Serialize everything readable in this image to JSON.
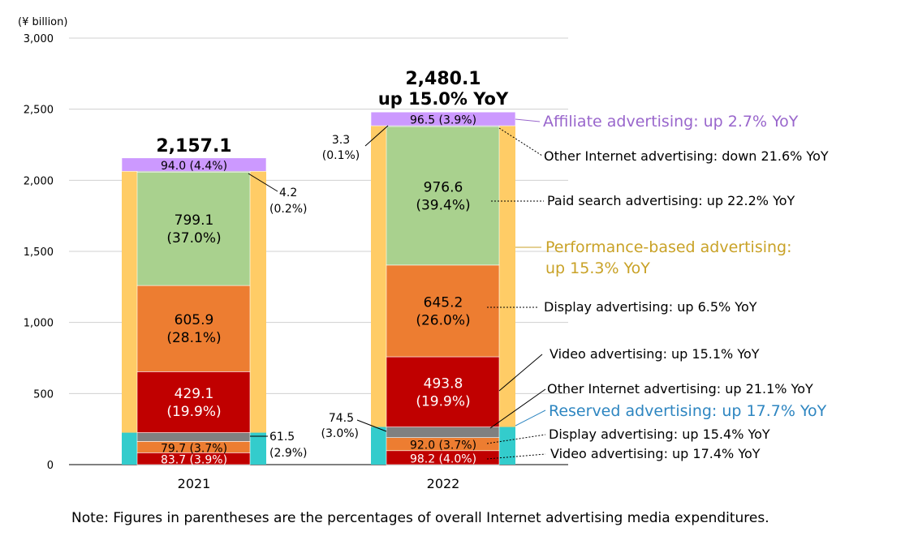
{
  "chart_data": {
    "type": "bar",
    "stacked": true,
    "unit_label": "(¥ billion)",
    "categories": [
      "2021",
      "2022"
    ],
    "ylim": [
      0,
      3000
    ],
    "yticks": [
      "0",
      "500",
      "1,000",
      "1,500",
      "2,000",
      "2,500",
      "3,000"
    ],
    "grid": true,
    "totals": [
      {
        "value": "2,157.1"
      },
      {
        "value": "2,480.1",
        "change": "up 15.0% YoY"
      }
    ],
    "segment_colors": {
      "video_reserved": "#c00000",
      "display_reserved": "#ed7d31",
      "other_reserved": "#808080",
      "video_perf": "#c00000",
      "display_perf": "#ed7d31",
      "paid_search": "#a9d18e",
      "other_perf": "#808080",
      "affiliate": "#cc99ff",
      "reserved_group": "#33cccc",
      "performance_group": "#ffcc66"
    },
    "groups": [
      {
        "key": "reserved_group",
        "values": [
          225,
          265
        ]
      },
      {
        "key": "performance_group",
        "values": [
          1838.1,
          2118.6
        ]
      }
    ],
    "series": [
      {
        "key": "video_reserved",
        "values": [
          83.7,
          98.2
        ],
        "labels": [
          "83.7 (3.9%)",
          "98.2 (4.0%)"
        ]
      },
      {
        "key": "display_reserved",
        "values": [
          79.7,
          92.0
        ],
        "labels": [
          "79.7 (3.7%)",
          "92.0 (3.7%)"
        ]
      },
      {
        "key": "other_reserved",
        "values": [
          61.5,
          74.5
        ],
        "labels": [
          "",
          ""
        ]
      },
      {
        "key": "video_perf",
        "values": [
          429.1,
          493.8
        ],
        "labels": [
          "429.1\n(19.9%)",
          "493.8\n(19.9%)"
        ]
      },
      {
        "key": "display_perf",
        "values": [
          605.9,
          645.2
        ],
        "labels": [
          "605.9\n(28.1%)",
          "645.2\n(26.0%)"
        ]
      },
      {
        "key": "paid_search",
        "values": [
          799.1,
          976.6
        ],
        "labels": [
          "799.1\n(37.0%)",
          "976.6\n(39.4%)"
        ]
      },
      {
        "key": "other_perf",
        "values": [
          4.2,
          3.3
        ],
        "labels": [
          "",
          ""
        ]
      },
      {
        "key": "affiliate",
        "values": [
          94.0,
          96.5
        ],
        "labels": [
          "94.0 (4.4%)",
          "96.5 (3.9%)"
        ]
      }
    ],
    "callouts": {
      "other_reserved_2021": {
        "value": "61.5",
        "pct": "(2.9%)"
      },
      "other_perf_2021": {
        "value": "4.2",
        "pct": "(0.2%)"
      },
      "other_reserved_2022": {
        "value": "74.5",
        "pct": "(3.0%)"
      },
      "other_perf_2022": {
        "value": "3.3",
        "pct": "(0.1%)"
      }
    },
    "annotations": {
      "affiliate": "Affiliate advertising: up 2.7% YoY",
      "other_perf": "Other Internet advertising: down 21.6% YoY",
      "paid_search": "Paid search advertising: up 22.2% YoY",
      "performance_line1": "Performance-based advertising:",
      "performance_line2": "up 15.3% YoY",
      "display_perf": "Display advertising: up 6.5% YoY",
      "video_perf": "Video advertising: up 15.1% YoY",
      "other_reserved": "Other Internet advertising: up 21.1% YoY",
      "reserved": "Reserved advertising: up 17.7% YoY",
      "display_reserved": "Display advertising: up 15.4% YoY",
      "video_reserved": "Video advertising: up 17.4% YoY"
    },
    "annotation_colors": {
      "affiliate": "#9966cc",
      "performance": "#c9a227",
      "reserved": "#2e86c1",
      "default": "#000000"
    },
    "note": "Note: Figures in parentheses are the percentages of overall Internet advertising media expenditures."
  }
}
